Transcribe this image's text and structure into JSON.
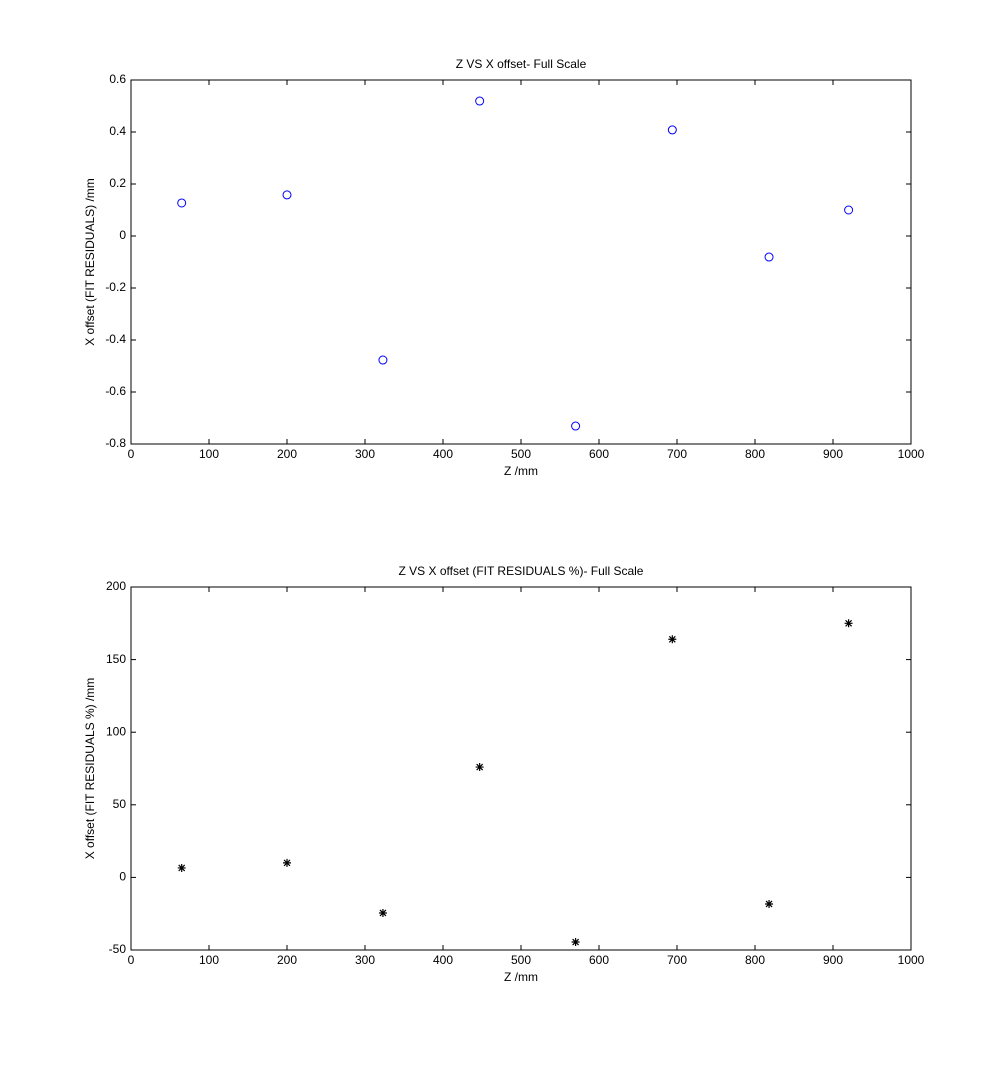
{
  "chart_data": [
    {
      "type": "scatter",
      "title": "Z VS X offset- Full Scale",
      "x_label": "Z /mm",
      "y_label": "X offset (FIT RESIDUALS) /mm",
      "x": [
        65,
        200,
        323,
        447,
        570,
        694,
        818,
        920
      ],
      "values": [
        0.127,
        0.158,
        -0.477,
        0.519,
        -0.731,
        0.408,
        -0.081,
        0.1
      ],
      "color": "#0000ff",
      "marker": "circle",
      "xlim": [
        0,
        1000
      ],
      "xticks": [
        0,
        100,
        200,
        300,
        400,
        500,
        600,
        700,
        800,
        900,
        1000
      ],
      "ylim": [
        -0.8,
        0.6
      ],
      "yticks": [
        -0.8,
        -0.6,
        -0.4,
        -0.2,
        0,
        0.2,
        0.4,
        0.6
      ],
      "grid": false
    },
    {
      "type": "scatter",
      "title": "Z VS X offset (FIT RESIDUALS %)- Full Scale",
      "x_label": "Z /mm",
      "y_label": "X offset (FIT RESIDUALS %) /mm",
      "x": [
        65,
        200,
        323,
        447,
        570,
        694,
        818,
        920
      ],
      "values": [
        6.5,
        10,
        -24.5,
        76,
        -44.5,
        164,
        -18.3,
        175
      ],
      "color": "#000000",
      "marker": "asterisk",
      "xlim": [
        0,
        1000
      ],
      "xticks": [
        0,
        100,
        200,
        300,
        400,
        500,
        600,
        700,
        800,
        900,
        1000
      ],
      "ylim": [
        -50,
        200
      ],
      "yticks": [
        -50,
        0,
        50,
        100,
        150,
        200
      ],
      "grid": false
    }
  ]
}
